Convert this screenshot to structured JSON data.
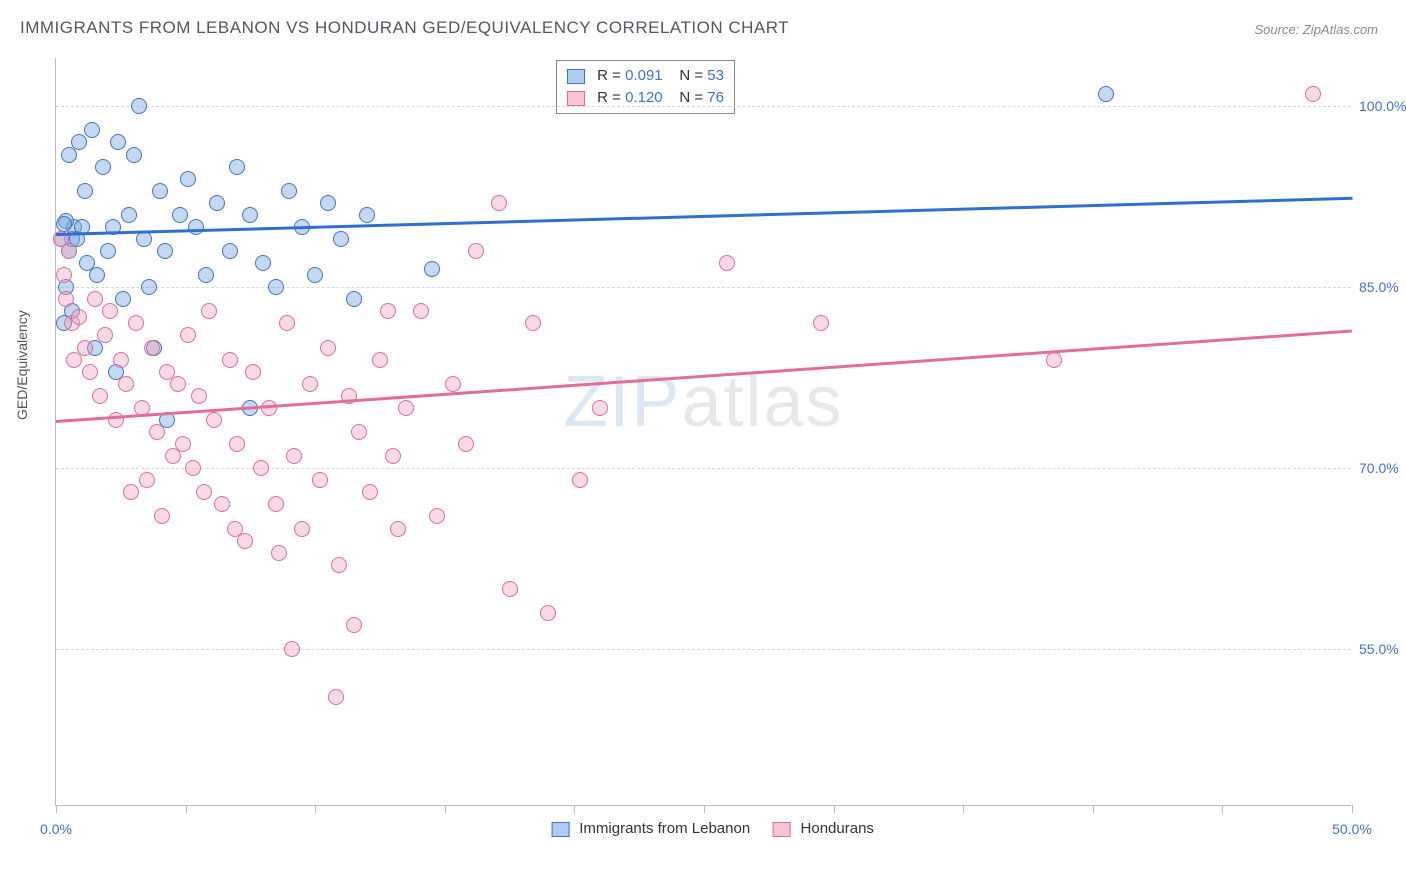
{
  "title": "IMMIGRANTS FROM LEBANON VS HONDURAN GED/EQUIVALENCY CORRELATION CHART",
  "source": "Source: ZipAtlas.com",
  "y_axis_label": "GED/Equivalency",
  "watermark_a": "ZIP",
  "watermark_b": "atlas",
  "chart": {
    "type": "scatter",
    "xlim": [
      0,
      50
    ],
    "ylim": [
      42,
      104
    ],
    "x_ticks": [
      0,
      50
    ],
    "x_tick_labels": [
      "0.0%",
      "50.0%"
    ],
    "x_minor_ticks": [
      5,
      10,
      15,
      20,
      25,
      30,
      35,
      40,
      45
    ],
    "y_ticks": [
      55,
      70,
      85,
      100
    ],
    "y_tick_labels": [
      "55.0%",
      "70.0%",
      "85.0%",
      "100.0%"
    ],
    "background_color": "#ffffff",
    "grid_color": "#d8d8d8",
    "axis_color": "#bbbbbb",
    "tick_label_color": "#4472c4",
    "title_color": "#555560",
    "marker_radius": 8,
    "series": [
      {
        "name": "Immigrants from Lebanon",
        "R": "0.091",
        "N": "53",
        "fill_color": "rgba(120,170,224,0.45)",
        "stroke_color": "#4472c4",
        "swatch_fill": "#aeccf0",
        "swatch_border": "#4472c4",
        "trend": {
          "y_at_xmin": 89.5,
          "y_at_xmax": 92.5,
          "color": "#2f6fd0",
          "width": 2.5
        },
        "points": [
          [
            0.3,
            82
          ],
          [
            0.4,
            85
          ],
          [
            0.5,
            88
          ],
          [
            0.6,
            89
          ],
          [
            0.7,
            90
          ],
          [
            0.8,
            89
          ],
          [
            0.5,
            96
          ],
          [
            0.9,
            97
          ],
          [
            1.0,
            90
          ],
          [
            1.2,
            87
          ],
          [
            1.1,
            93
          ],
          [
            1.4,
            98
          ],
          [
            1.6,
            86
          ],
          [
            1.8,
            95
          ],
          [
            2.0,
            88
          ],
          [
            2.2,
            90
          ],
          [
            2.4,
            97
          ],
          [
            2.6,
            84
          ],
          [
            2.8,
            91
          ],
          [
            3.0,
            96
          ],
          [
            3.2,
            100
          ],
          [
            3.4,
            89
          ],
          [
            3.6,
            85
          ],
          [
            3.8,
            80
          ],
          [
            4.0,
            93
          ],
          [
            4.2,
            88
          ],
          [
            0.6,
            83
          ],
          [
            1.5,
            80
          ],
          [
            2.3,
            78
          ],
          [
            0.4,
            90.5
          ],
          [
            5.1,
            94
          ],
          [
            5.4,
            90
          ],
          [
            5.8,
            86
          ],
          [
            6.2,
            92
          ],
          [
            6.7,
            88
          ],
          [
            7.0,
            95
          ],
          [
            7.5,
            91
          ],
          [
            8.0,
            87
          ],
          [
            8.5,
            85
          ],
          [
            9.0,
            93
          ],
          [
            9.5,
            90
          ],
          [
            10.0,
            86
          ],
          [
            10.5,
            92
          ],
          [
            11.0,
            89
          ],
          [
            11.5,
            84
          ],
          [
            12.0,
            91
          ],
          [
            14.5,
            86.5
          ],
          [
            7.5,
            75
          ],
          [
            4.3,
            74
          ],
          [
            40.5,
            101
          ],
          [
            0.2,
            89
          ],
          [
            0.3,
            90.2
          ],
          [
            4.8,
            91
          ]
        ]
      },
      {
        "name": "Hondurans",
        "R": "0.120",
        "N": "76",
        "fill_color": "rgba(240,160,190,0.40)",
        "stroke_color": "#e16e96",
        "swatch_fill": "#f6c4d4",
        "swatch_border": "#e16e96",
        "trend": {
          "y_at_xmin": 74.0,
          "y_at_xmax": 81.5,
          "color": "#e16e96",
          "width": 2.5
        },
        "points": [
          [
            0.2,
            89
          ],
          [
            0.3,
            86
          ],
          [
            0.4,
            84
          ],
          [
            0.5,
            88
          ],
          [
            0.6,
            82
          ],
          [
            0.7,
            79
          ],
          [
            0.9,
            82.5
          ],
          [
            1.1,
            80
          ],
          [
            1.3,
            78
          ],
          [
            1.5,
            84
          ],
          [
            1.7,
            76
          ],
          [
            1.9,
            81
          ],
          [
            2.1,
            83
          ],
          [
            2.3,
            74
          ],
          [
            2.5,
            79
          ],
          [
            2.7,
            77
          ],
          [
            2.9,
            68
          ],
          [
            3.1,
            82
          ],
          [
            3.3,
            75
          ],
          [
            3.5,
            69
          ],
          [
            3.7,
            80
          ],
          [
            3.9,
            73
          ],
          [
            4.1,
            66
          ],
          [
            4.3,
            78
          ],
          [
            4.5,
            71
          ],
          [
            4.7,
            77
          ],
          [
            4.9,
            72
          ],
          [
            5.1,
            81
          ],
          [
            5.3,
            70
          ],
          [
            5.5,
            76
          ],
          [
            5.7,
            68
          ],
          [
            5.9,
            83
          ],
          [
            6.1,
            74
          ],
          [
            6.4,
            67
          ],
          [
            6.7,
            79
          ],
          [
            7.0,
            72
          ],
          [
            7.3,
            64
          ],
          [
            7.6,
            78
          ],
          [
            7.9,
            70
          ],
          [
            8.2,
            75
          ],
          [
            8.5,
            67
          ],
          [
            8.9,
            82
          ],
          [
            9.2,
            71
          ],
          [
            9.5,
            65
          ],
          [
            9.8,
            77
          ],
          [
            10.2,
            69
          ],
          [
            10.5,
            80
          ],
          [
            10.9,
            62
          ],
          [
            11.3,
            76
          ],
          [
            11.7,
            73
          ],
          [
            12.1,
            68
          ],
          [
            12.5,
            79
          ],
          [
            13.0,
            71
          ],
          [
            13.5,
            75
          ],
          [
            14.1,
            83
          ],
          [
            14.7,
            66
          ],
          [
            15.3,
            77
          ],
          [
            16.2,
            88
          ],
          [
            17.1,
            92
          ],
          [
            17.5,
            60
          ],
          [
            19.0,
            58
          ],
          [
            20.2,
            69
          ],
          [
            21.0,
            75
          ],
          [
            25.9,
            87
          ],
          [
            29.5,
            82
          ],
          [
            38.5,
            79
          ],
          [
            48.5,
            101
          ],
          [
            10.8,
            51
          ],
          [
            9.1,
            55
          ],
          [
            13.2,
            65
          ],
          [
            15.8,
            72
          ],
          [
            18.4,
            82
          ],
          [
            8.6,
            63
          ],
          [
            6.9,
            65
          ],
          [
            11.5,
            57
          ],
          [
            12.8,
            83
          ]
        ]
      }
    ]
  },
  "legend_top": {
    "r_label": "R =",
    "n_label": "N ="
  },
  "legend_bottom": {
    "label_a": "Immigrants from Lebanon",
    "label_b": "Hondurans"
  }
}
